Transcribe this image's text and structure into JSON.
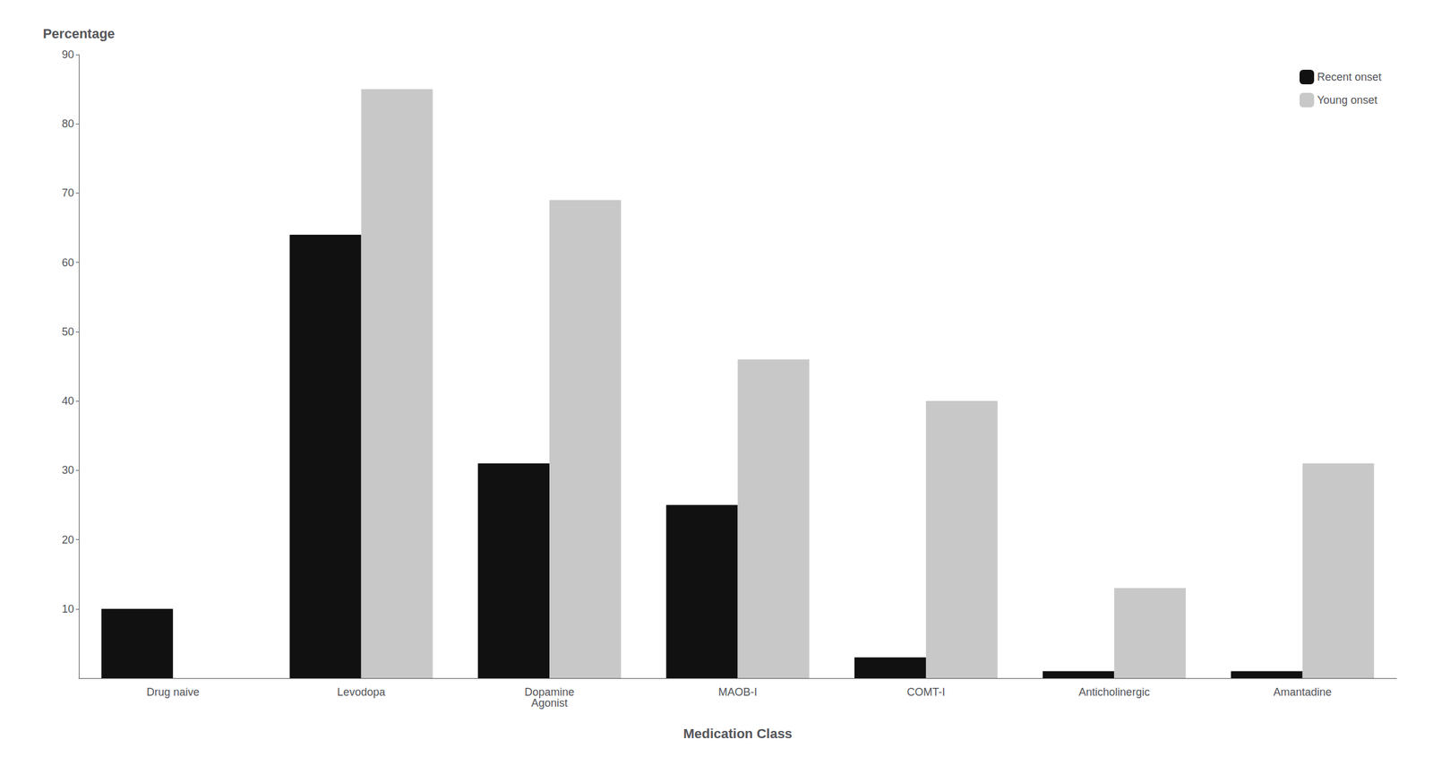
{
  "chart_data": {
    "type": "bar",
    "categories": [
      "Drug naive",
      "Levodopa",
      "Dopamine\nAgonist",
      "MAOB-I",
      "COMT-I",
      "Anticholinergic",
      "Amantadine"
    ],
    "series": [
      {
        "name": "Recent onset",
        "color": "#111111",
        "values": [
          10,
          64,
          31,
          25,
          3,
          1,
          1
        ]
      },
      {
        "name": "Young onset",
        "color": "#c8c8c8",
        "values": [
          0,
          85,
          69,
          46,
          40,
          13,
          31
        ]
      }
    ],
    "xlabel": "Medication Class",
    "ylabel": "Percentage",
    "ylim": [
      0,
      90
    ],
    "yticks": [
      10,
      20,
      30,
      40,
      50,
      60,
      70,
      80,
      90
    ],
    "grid": false,
    "legend": "upper right"
  }
}
